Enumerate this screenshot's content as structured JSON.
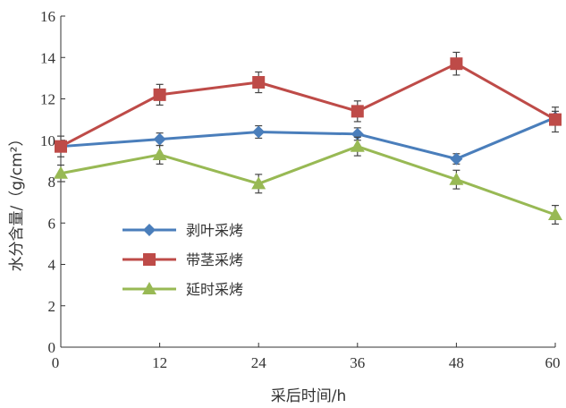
{
  "chart_data": {
    "type": "line",
    "title": "",
    "xlabel": "采后时间/h",
    "ylabel": "水分含量/（g/cm²）",
    "x": [
      0,
      12,
      24,
      36,
      48,
      60
    ],
    "xlim": [
      0,
      60
    ],
    "ylim": [
      0,
      16
    ],
    "x_ticks": [
      "0",
      "12",
      "24",
      "36",
      "48",
      "60"
    ],
    "y_ticks": [
      "0",
      "2",
      "4",
      "6",
      "8",
      "10",
      "12",
      "14",
      "16"
    ],
    "grid": false,
    "legend_position": "lower-left",
    "series": [
      {
        "name": "剥叶采烤",
        "color": "#4a7ebb",
        "marker": "diamond",
        "values": [
          9.7,
          10.05,
          10.4,
          10.3,
          9.1,
          11.1
        ],
        "errors": [
          0.25,
          0.3,
          0.3,
          0.3,
          0.25,
          0.3
        ]
      },
      {
        "name": "带茎采烤",
        "color": "#be4b48",
        "marker": "square",
        "values": [
          9.7,
          12.2,
          12.8,
          11.4,
          13.7,
          11.0
        ],
        "errors": [
          0.5,
          0.5,
          0.5,
          0.5,
          0.55,
          0.6
        ]
      },
      {
        "name": "延时采烤",
        "color": "#98b954",
        "marker": "triangle",
        "values": [
          8.4,
          9.3,
          7.9,
          9.7,
          8.1,
          6.4
        ],
        "errors": [
          0.4,
          0.45,
          0.45,
          0.45,
          0.45,
          0.45
        ]
      }
    ]
  }
}
